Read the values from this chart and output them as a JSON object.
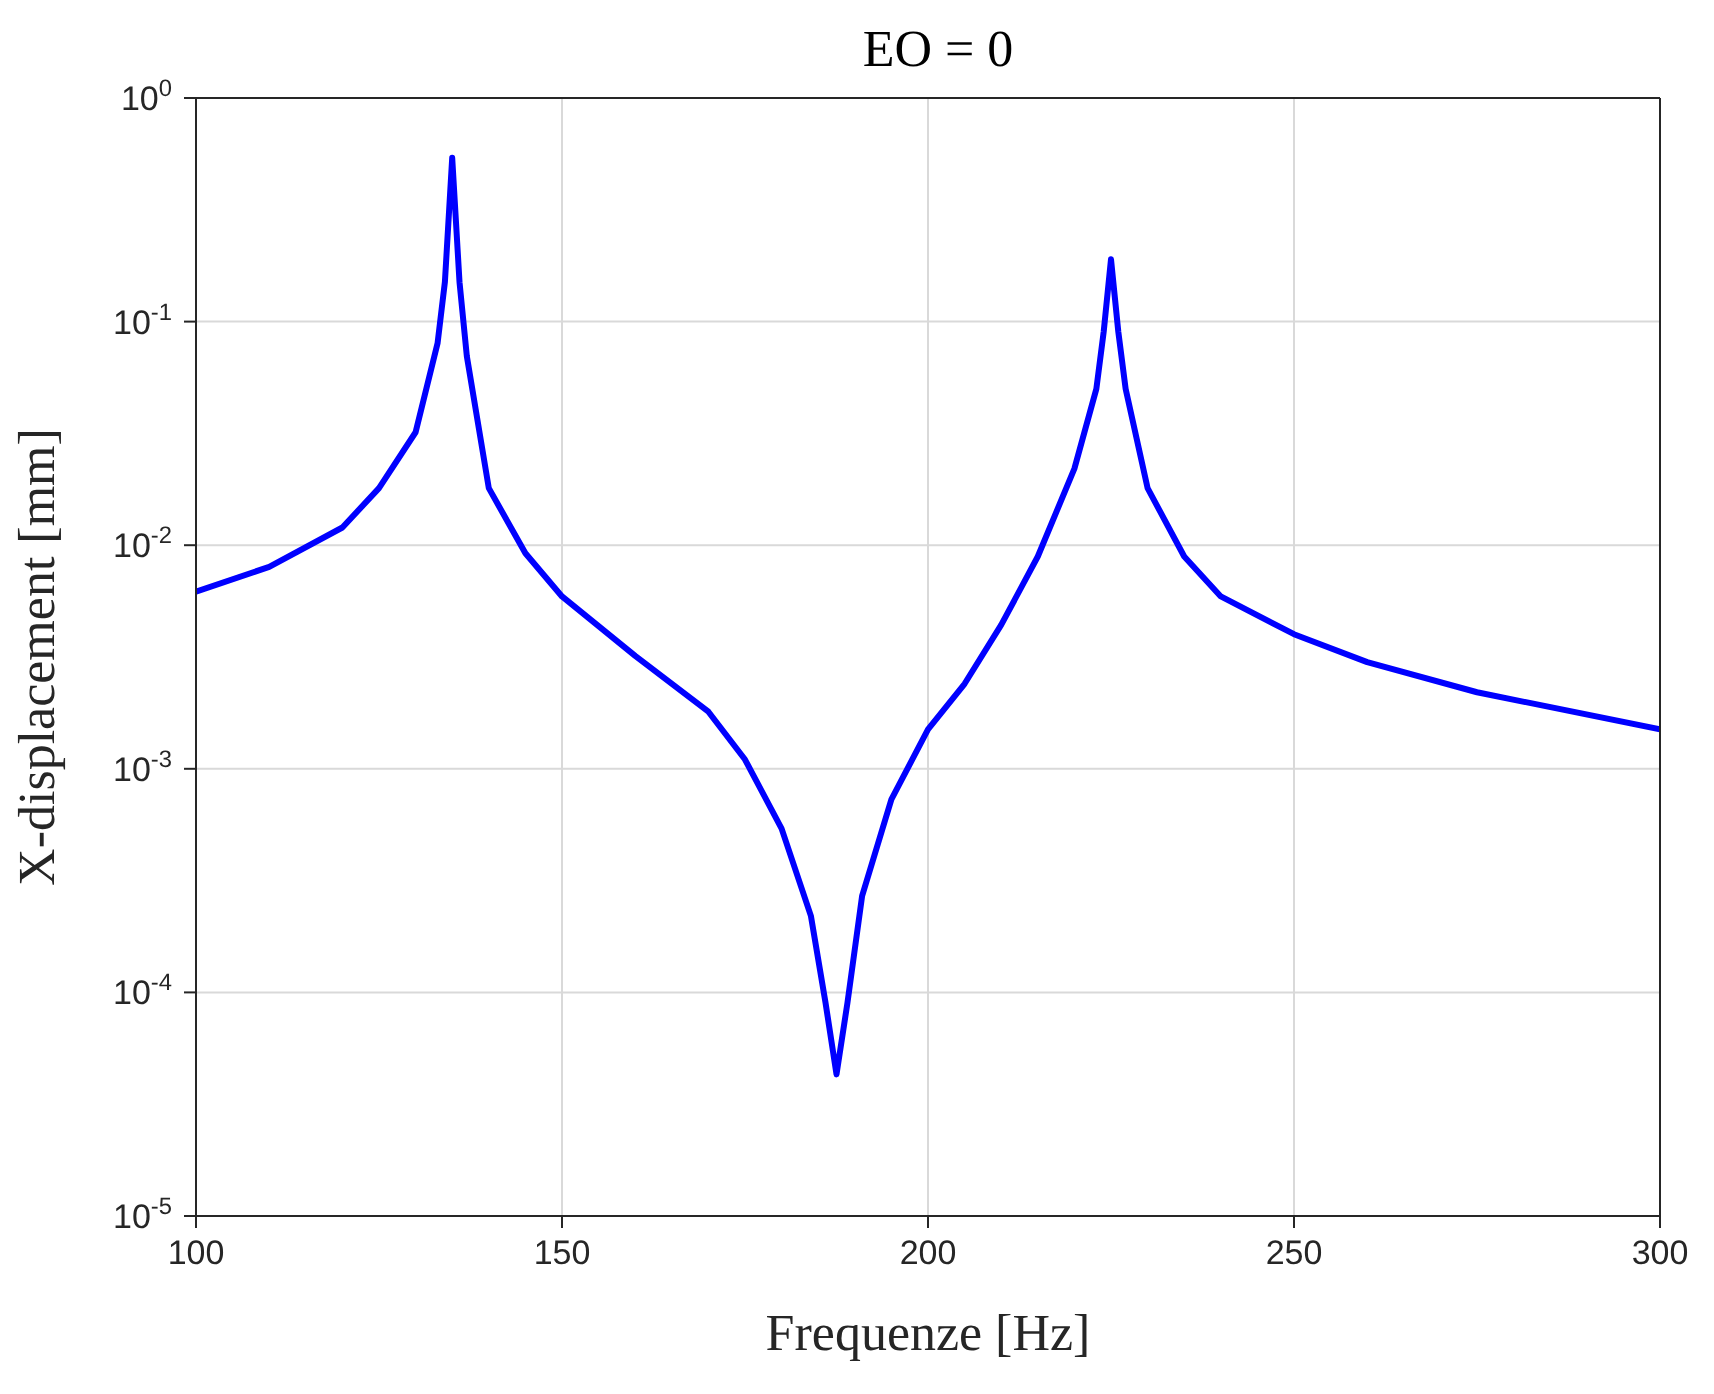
{
  "chart_data": {
    "type": "line",
    "title": "EO = 0",
    "xlabel": "Frequenze [Hz]",
    "ylabel": "X-displacement [mm]",
    "x": [
      100,
      110,
      120,
      125,
      130,
      133,
      134,
      135,
      136,
      137,
      140,
      145,
      150,
      160,
      170,
      175,
      180,
      184,
      186,
      187.5,
      189,
      191,
      195,
      200,
      205,
      210,
      215,
      220,
      223,
      224,
      225,
      226,
      227,
      230,
      235,
      240,
      250,
      260,
      275,
      300
    ],
    "series": [
      {
        "color": "#0000ff",
        "values": [
          0.0062,
          0.008,
          0.012,
          0.018,
          0.032,
          0.08,
          0.15,
          0.54,
          0.15,
          0.07,
          0.018,
          0.0092,
          0.0059,
          0.0032,
          0.0018,
          0.0011,
          0.00054,
          0.00022,
          9e-05,
          4.3e-05,
          9e-05,
          0.00027,
          0.00073,
          0.0015,
          0.0024,
          0.0044,
          0.0089,
          0.022,
          0.05,
          0.09,
          0.19,
          0.09,
          0.05,
          0.018,
          0.0089,
          0.0059,
          0.004,
          0.003,
          0.0022,
          0.0015
        ]
      }
    ],
    "log": "y",
    "xlim": [
      100,
      300
    ],
    "ylim": [
      1e-05,
      1
    ],
    "xticks": [
      100,
      150,
      200,
      250,
      300
    ],
    "yticks": [
      {
        "value": 1e-05,
        "label": "10$^{-5}$"
      },
      {
        "value": 0.0001,
        "label": "10$^{-4}$"
      },
      {
        "value": 0.001,
        "label": "10$^{-3}$"
      },
      {
        "value": 0.01,
        "label": "10$^{-2}$"
      },
      {
        "value": 0.1,
        "label": "10$^{-1}$"
      },
      {
        "value": 1,
        "label": "10$^{0}$"
      }
    ],
    "grid": true,
    "marker": "none",
    "line_style": "solid"
  }
}
